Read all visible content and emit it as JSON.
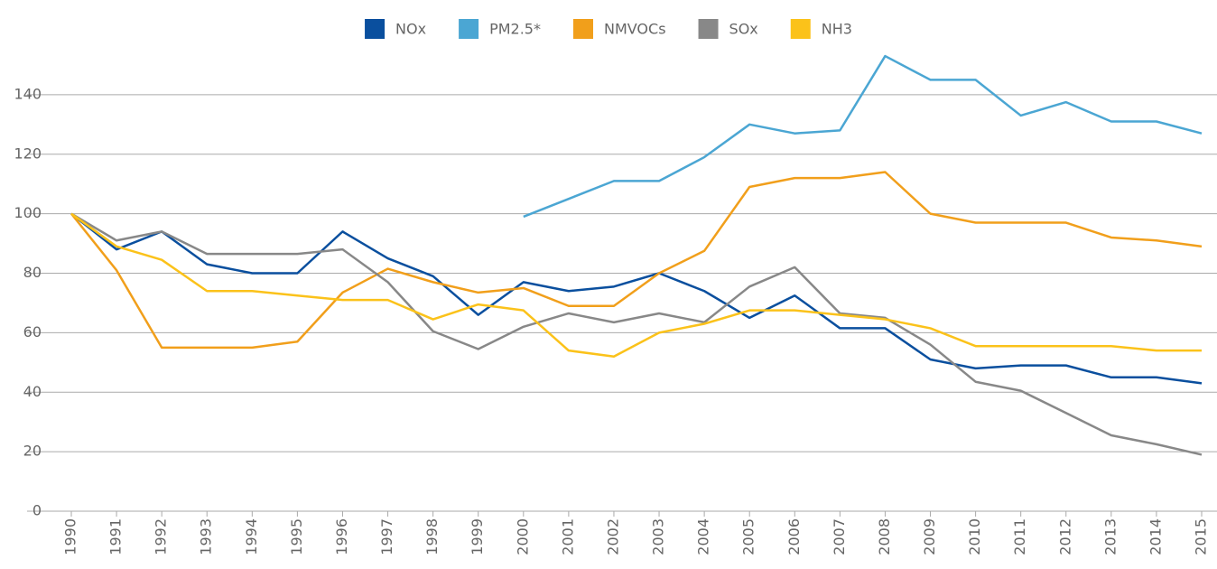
{
  "chart_data": {
    "type": "line",
    "categories": [
      "1990",
      "1991",
      "1992",
      "1993",
      "1994",
      "1995",
      "1996",
      "1997",
      "1998",
      "1999",
      "2000",
      "2001",
      "2002",
      "2003",
      "2004",
      "2005",
      "2006",
      "2007",
      "2008",
      "2009",
      "2010",
      "2011",
      "2012",
      "2013",
      "2014",
      "2015"
    ],
    "series": [
      {
        "name": "NOx",
        "color": "#0a4f9e",
        "values": [
          100,
          88,
          94,
          83,
          80,
          80,
          94,
          85,
          79,
          66,
          77,
          74,
          75.5,
          80,
          74,
          65,
          72.5,
          61.5,
          61.5,
          51,
          48,
          49,
          49,
          45,
          45,
          43
        ]
      },
      {
        "name": "PM2.5*",
        "color": "#4ba6d3",
        "values": [
          null,
          null,
          null,
          null,
          null,
          null,
          null,
          null,
          null,
          null,
          99,
          105,
          111,
          111,
          119,
          130,
          127,
          128,
          153,
          145,
          145,
          133,
          137.5,
          131,
          131,
          127
        ]
      },
      {
        "name": "NMVOCs",
        "color": "#f19f1b",
        "values": [
          100,
          81,
          55,
          55,
          55,
          57,
          73.5,
          81.5,
          77,
          73.5,
          75,
          69,
          69,
          80,
          87.5,
          109,
          112,
          112,
          114,
          100,
          97,
          97,
          97,
          92,
          91,
          89
        ]
      },
      {
        "name": "SOx",
        "color": "#888888",
        "values": [
          100,
          91,
          94,
          86.5,
          86.5,
          86.5,
          88,
          77,
          60.5,
          54.5,
          62,
          66.5,
          63.5,
          66.5,
          63.5,
          75.5,
          82,
          66.5,
          65,
          56,
          43.5,
          40.5,
          33,
          25.5,
          22.5,
          19
        ]
      },
      {
        "name": "NH3",
        "color": "#fbc21a",
        "values": [
          100,
          89,
          84.5,
          74,
          74,
          72.5,
          71,
          71,
          64.5,
          69.5,
          67.5,
          54,
          52,
          60,
          63,
          67.5,
          67.5,
          66,
          64.5,
          61.5,
          55.5,
          55.5,
          55.5,
          55.5,
          54,
          54
        ]
      }
    ],
    "ylim": [
      0,
      160
    ],
    "yticks": [
      0,
      20,
      40,
      60,
      80,
      100,
      120,
      140
    ],
    "grid": true,
    "legend": "top"
  }
}
